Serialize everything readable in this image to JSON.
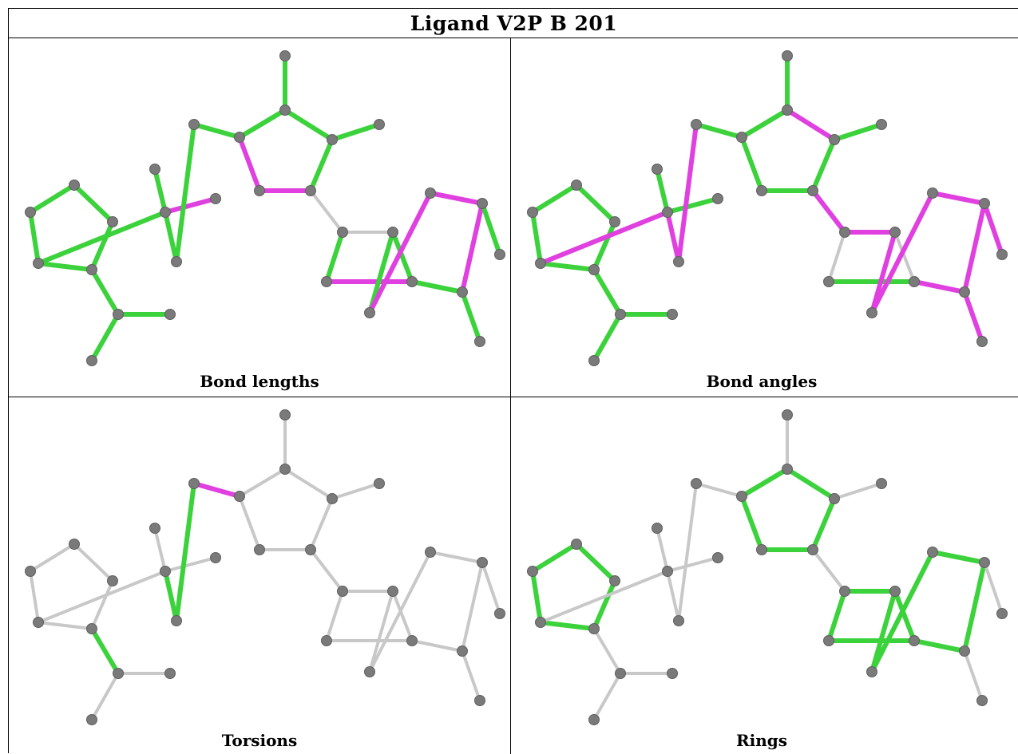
{
  "title": "Ligand V2P B 201",
  "panels": [
    {
      "key": "bond_lengths",
      "caption": "Bond lengths"
    },
    {
      "key": "bond_angles",
      "caption": "Bond angles"
    },
    {
      "key": "torsions",
      "caption": "Torsions"
    },
    {
      "key": "rings",
      "caption": "Rings"
    }
  ],
  "colors": {
    "pass": "#3bd23b",
    "outlier": "#e040e0",
    "neutral": "#c8c8c8",
    "atom": "#7a7a7a",
    "border": "#000000"
  },
  "molecule": {
    "atoms": [
      "a0",
      "a1",
      "a2",
      "a3",
      "a4",
      "a5",
      "a6",
      "a7",
      "a8",
      "a9",
      "a10",
      "a11",
      "a12",
      "a13",
      "a14",
      "a15",
      "a16",
      "a17",
      "a18",
      "a19",
      "a20",
      "a21",
      "a22",
      "a23",
      "a24",
      "a25",
      "a26",
      "a27",
      "a28"
    ],
    "bonds": [
      [
        "a0",
        "a1"
      ],
      [
        "a1",
        "a2"
      ],
      [
        "a2",
        "a3"
      ],
      [
        "a3",
        "a4"
      ],
      [
        "a4",
        "a0"
      ],
      [
        "a3",
        "a5"
      ],
      [
        "a5",
        "a6"
      ],
      [
        "a5",
        "a7"
      ],
      [
        "a2",
        "a8"
      ],
      [
        "a8",
        "a9"
      ],
      [
        "a8",
        "a10"
      ],
      [
        "a8",
        "a11"
      ],
      [
        "a11",
        "a12"
      ],
      [
        "a12",
        "a13"
      ],
      [
        "a13",
        "a14"
      ],
      [
        "a14",
        "a17"
      ],
      [
        "a17",
        "a18"
      ],
      [
        "a18",
        "a19"
      ],
      [
        "a19",
        "a13"
      ],
      [
        "a14",
        "a15"
      ],
      [
        "a17",
        "a16"
      ],
      [
        "a18",
        "a20"
      ],
      [
        "a20",
        "a21"
      ],
      [
        "a21",
        "a22"
      ],
      [
        "a22",
        "a23"
      ],
      [
        "a23",
        "a20"
      ],
      [
        "a21",
        "a24"
      ],
      [
        "a24",
        "a25"
      ],
      [
        "a25",
        "a26"
      ],
      [
        "a26",
        "a27"
      ],
      [
        "a27",
        "a22"
      ],
      [
        "a26",
        "a28"
      ]
    ]
  },
  "bond_status": {
    "bond_lengths": [
      "pass",
      "pass",
      "pass",
      "pass",
      "pass",
      "pass",
      "pass",
      "pass",
      "pass",
      "outlier",
      "pass",
      "pass",
      "pass",
      "pass",
      "pass",
      "pass",
      "pass",
      "outlier",
      "outlier",
      "pass",
      "pass",
      "neutral",
      "neutral",
      "pass",
      "outlier",
      "pass",
      "pass",
      "outlier",
      "outlier",
      "outlier",
      "pass",
      "pass"
    ],
    "bond_angles": [
      "pass",
      "pass",
      "pass",
      "pass",
      "pass",
      "pass",
      "pass",
      "pass",
      "outlier",
      "pass",
      "pass",
      "outlier",
      "outlier",
      "pass",
      "pass",
      "outlier",
      "pass",
      "pass",
      "pass",
      "pass",
      "pass",
      "outlier",
      "outlier",
      "neutral",
      "pass",
      "neutral",
      "outlier",
      "outlier",
      "outlier",
      "outlier",
      "outlier",
      "outlier"
    ],
    "torsions": [
      "neutral",
      "neutral",
      "neutral",
      "neutral",
      "neutral",
      "pass",
      "neutral",
      "neutral",
      "neutral",
      "neutral",
      "neutral",
      "pass",
      "pass",
      "outlier",
      "neutral",
      "neutral",
      "neutral",
      "neutral",
      "neutral",
      "neutral",
      "neutral",
      "neutral",
      "neutral",
      "neutral",
      "neutral",
      "neutral",
      "neutral",
      "neutral",
      "neutral",
      "neutral",
      "neutral",
      "neutral"
    ],
    "rings": [
      "pass",
      "pass",
      "pass",
      "pass",
      "pass",
      "neutral",
      "neutral",
      "neutral",
      "neutral",
      "neutral",
      "neutral",
      "neutral",
      "neutral",
      "neutral",
      "pass",
      "pass",
      "pass",
      "pass",
      "pass",
      "neutral",
      "neutral",
      "neutral",
      "pass",
      "pass",
      "pass",
      "pass",
      "pass",
      "pass",
      "pass",
      "pass",
      "pass",
      "neutral"
    ]
  }
}
